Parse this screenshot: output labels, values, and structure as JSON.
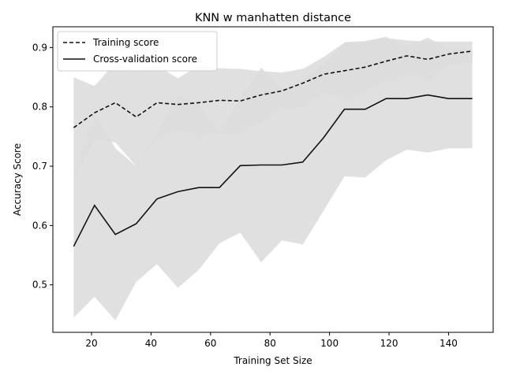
{
  "chart_data": {
    "type": "line",
    "title": "KNN w manhatten distance",
    "xlabel": "Training Set Size",
    "ylabel": "Accuracy Score",
    "xlim": [
      7,
      155
    ],
    "ylim": [
      0.42,
      0.935
    ],
    "xticks": [
      20,
      40,
      60,
      80,
      100,
      120,
      140
    ],
    "yticks": [
      0.5,
      0.6,
      0.7,
      0.8,
      0.9
    ],
    "grid": false,
    "legend_placement": "top-left",
    "colors": {
      "line": "#111111",
      "band": "#dddddd"
    },
    "x": [
      14,
      21,
      28,
      35,
      42,
      49,
      56,
      63,
      70,
      77,
      84,
      91,
      98,
      105,
      112,
      119,
      126,
      133,
      140,
      148
    ],
    "series": [
      {
        "name": "Training score",
        "style": "dashed",
        "values": [
          0.765,
          0.79,
          0.807,
          0.783,
          0.807,
          0.804,
          0.807,
          0.811,
          0.81,
          0.82,
          0.827,
          0.84,
          0.855,
          0.861,
          0.867,
          0.877,
          0.886,
          0.88,
          0.889,
          0.894
        ],
        "band_lower": [
          0.68,
          0.745,
          0.74,
          0.7,
          0.745,
          0.76,
          0.75,
          0.755,
          0.755,
          0.775,
          0.795,
          0.8,
          0.825,
          0.81,
          0.825,
          0.84,
          0.855,
          0.845,
          0.87,
          0.875
        ],
        "band_upper": [
          0.85,
          0.835,
          0.875,
          0.862,
          0.87,
          0.848,
          0.87,
          0.865,
          0.864,
          0.86,
          0.858,
          0.864,
          0.884,
          0.908,
          0.91,
          0.916,
          0.912,
          0.91,
          0.91,
          0.91
        ]
      },
      {
        "name": "Cross-validation score",
        "style": "solid",
        "values": [
          0.565,
          0.634,
          0.585,
          0.603,
          0.645,
          0.657,
          0.664,
          0.664,
          0.701,
          0.702,
          0.702,
          0.707,
          0.748,
          0.796,
          0.796,
          0.814,
          0.814,
          0.82,
          0.814,
          0.814
        ],
        "band_lower": [
          0.445,
          0.48,
          0.44,
          0.505,
          0.535,
          0.495,
          0.525,
          0.57,
          0.588,
          0.538,
          0.575,
          0.568,
          0.625,
          0.683,
          0.681,
          0.71,
          0.728,
          0.723,
          0.73,
          0.73
        ],
        "band_upper": [
          0.685,
          0.79,
          0.73,
          0.7,
          0.755,
          0.82,
          0.803,
          0.758,
          0.814,
          0.866,
          0.83,
          0.846,
          0.871,
          0.909,
          0.911,
          0.918,
          0.9,
          0.917,
          0.898,
          0.898
        ]
      }
    ]
  }
}
